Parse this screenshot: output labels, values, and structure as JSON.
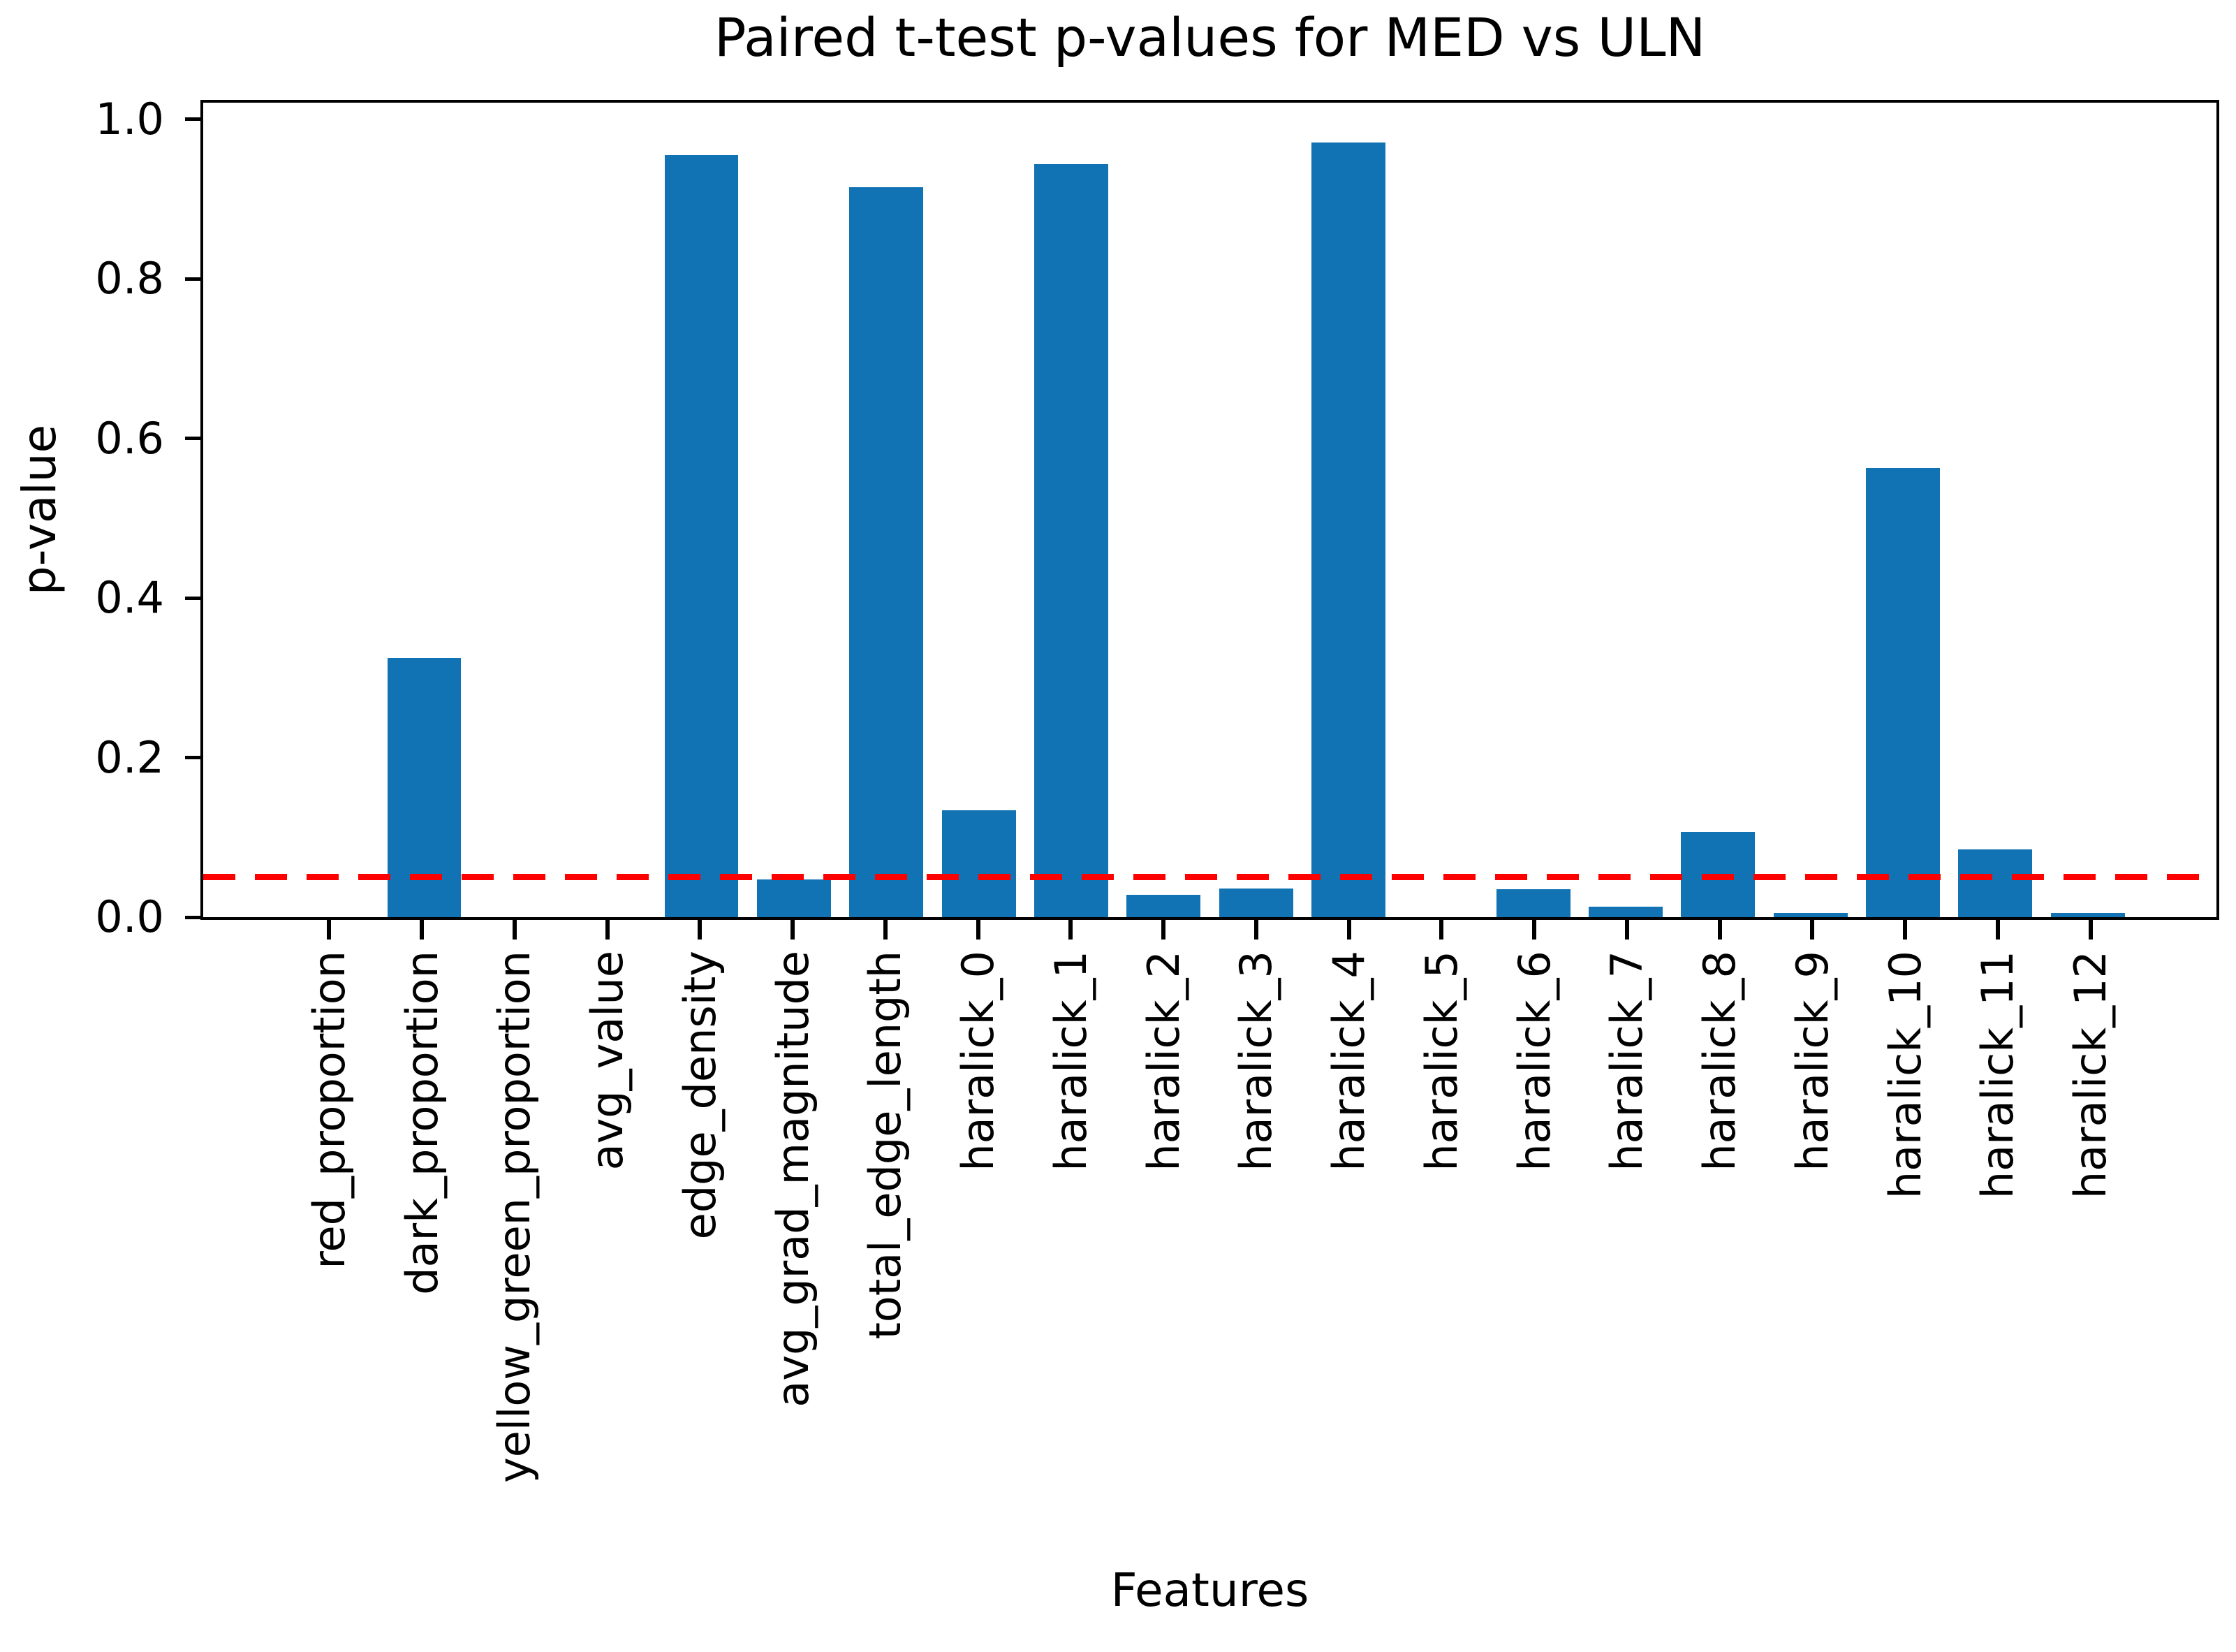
{
  "figure": {
    "background": "#ffffff",
    "text_color": "#000000"
  },
  "chart_data": {
    "type": "bar",
    "title": "Paired t-test p-values for MED vs ULN",
    "xlabel": "Features",
    "ylabel": "p-value",
    "categories": [
      "red_proportion",
      "dark_proportion",
      "yellow_green_proportion",
      "avg_value",
      "edge_density",
      "avg_grad_magnitude",
      "total_edge_length",
      "haralick_0",
      "haralick_1",
      "haralick_2",
      "haralick_3",
      "haralick_4",
      "haralick_5",
      "haralick_6",
      "haralick_7",
      "haralick_8",
      "haralick_9",
      "haralick_10",
      "haralick_11",
      "haralick_12"
    ],
    "values": [
      0.0,
      0.325,
      0.0,
      0.0,
      0.955,
      0.047,
      0.915,
      0.134,
      0.944,
      0.028,
      0.036,
      0.971,
      0.0,
      0.035,
      0.013,
      0.107,
      0.005,
      0.563,
      0.085,
      0.005
    ],
    "bar_color": "#1273b4",
    "yticks": [
      0.0,
      0.2,
      0.4,
      0.6,
      0.8,
      1.0
    ],
    "ytick_labels": [
      "0.0",
      "0.2",
      "0.4",
      "0.6",
      "0.8",
      "1.0"
    ],
    "ylim": [
      0,
      1.021
    ],
    "grid": false,
    "legend": null,
    "threshold_line": {
      "value": 0.05,
      "color": "#ff0000",
      "style": "dashed"
    }
  }
}
